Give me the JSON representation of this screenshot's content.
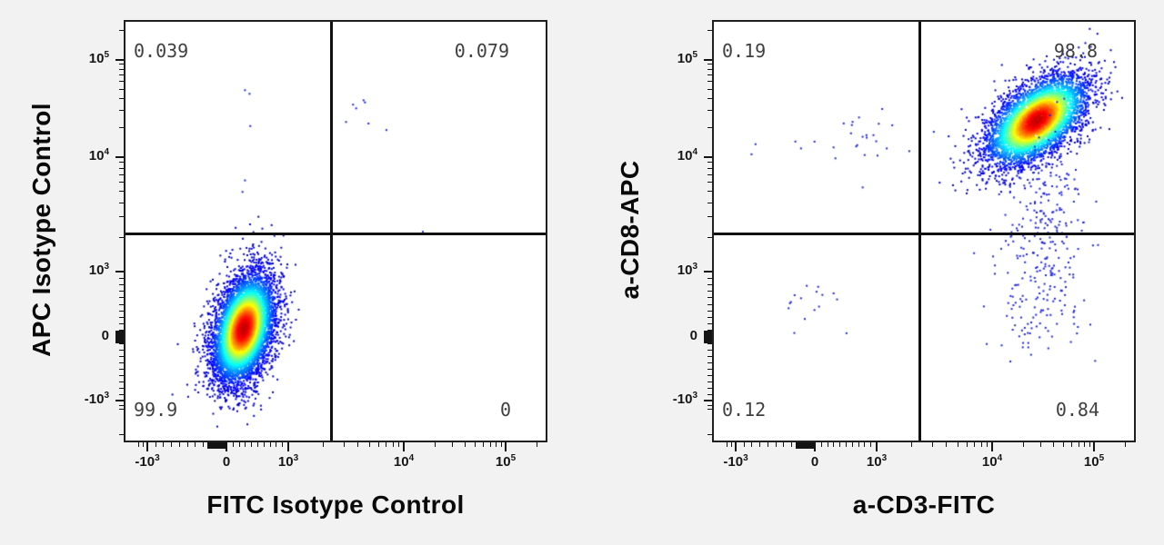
{
  "figure": {
    "background": "#f2f2f2",
    "plot_background": "#ffffff",
    "border_color": "#1f1f1f",
    "quadrant_line_color": "#101010",
    "dot_blue": "#2026dd",
    "quadrant_label_color": "#3f3f3f",
    "title_color": "#0a0a0a"
  },
  "chart_data": [
    {
      "type": "scatter",
      "subtype": "flow-cytometry-pseudocolor-dot-plot",
      "xlabel": "FITC Isotype Control",
      "ylabel": "APC Isotype Control",
      "x_scale": "biexponential",
      "y_scale": "biexponential",
      "x_range": [
        -2400,
        240000
      ],
      "y_range": [
        -2300,
        240000
      ],
      "axis_ticks": [
        {
          "v": -1000,
          "base": "-10",
          "sup": "3"
        },
        {
          "v": 0,
          "base": "0",
          "sup": ""
        },
        {
          "v": 1000,
          "base": "10",
          "sup": "3"
        },
        {
          "v": 10000,
          "base": "10",
          "sup": "4"
        },
        {
          "v": 100000,
          "base": "10",
          "sup": "5"
        }
      ],
      "quadrant_gate": {
        "x": 2300,
        "y": 2250
      },
      "quadrants": {
        "upper_left": "0.039",
        "upper_right": "0.079",
        "lower_left": "99.9",
        "lower_right": "0"
      },
      "seed": 7,
      "populations": [
        {
          "name": "unstained-main",
          "pct": 99.9,
          "x": 265,
          "y": 155,
          "sx": 17,
          "sy": 30,
          "rho": 0.35,
          "n": 7000,
          "render": "density"
        },
        {
          "name": "upper-left-strays",
          "pct": 0.039,
          "x": 300,
          "y": 36000,
          "sx": 5,
          "sy": 58,
          "rho": 0,
          "n": 5,
          "render": "sparse"
        },
        {
          "name": "upper-right-strays",
          "pct": 0.079,
          "x": 4400,
          "y": 30000,
          "sx": 17,
          "sy": 12,
          "rho": 0,
          "n": 7,
          "render": "sparse"
        },
        {
          "name": "gate-edge-stray",
          "x": 15000,
          "y": 2300,
          "sx": 0.5,
          "sy": 0.5,
          "rho": 0,
          "n": 1,
          "render": "sparse"
        }
      ]
    },
    {
      "type": "scatter",
      "subtype": "flow-cytometry-pseudocolor-dot-plot",
      "xlabel": "a-CD3-FITC",
      "ylabel": "a-CD8-APC",
      "x_scale": "biexponential",
      "y_scale": "biexponential",
      "x_range": [
        -2400,
        240000
      ],
      "y_range": [
        -2300,
        240000
      ],
      "axis_ticks": [
        {
          "v": -1000,
          "base": "-10",
          "sup": "3"
        },
        {
          "v": 0,
          "base": "0",
          "sup": ""
        },
        {
          "v": 1000,
          "base": "10",
          "sup": "3"
        },
        {
          "v": 10000,
          "base": "10",
          "sup": "4"
        },
        {
          "v": 100000,
          "base": "10",
          "sup": "5"
        }
      ],
      "quadrant_gate": {
        "x": 2300,
        "y": 2250
      },
      "quadrants": {
        "upper_left": "0.19",
        "upper_right": "98.8",
        "lower_left": "0.12",
        "lower_right": "0.84"
      },
      "seed": 11,
      "populations": [
        {
          "name": "cd3pos-cd8pos",
          "pct": 98.8,
          "x": 27000,
          "y": 25000,
          "sx": 28,
          "sy": 25,
          "rho": 0.55,
          "n": 5200,
          "render": "density"
        },
        {
          "name": "cd8-dim-trail",
          "x": 33000,
          "y": 2500,
          "sx": 20,
          "sy": 50,
          "rho": 0.1,
          "n": 230,
          "render": "sparse"
        },
        {
          "name": "cd3pos-cd8neg",
          "pct": 0.84,
          "x": 24000,
          "y": 600,
          "sx": 26,
          "sy": 38,
          "rho": 0,
          "n": 85,
          "render": "sparse"
        },
        {
          "name": "cd3neg-cd8pos",
          "pct": 0.19,
          "x": 500,
          "y": 17000,
          "sx": 45,
          "sy": 17,
          "rho": 0,
          "n": 28,
          "render": "sparse"
        },
        {
          "name": "double-negative",
          "pct": 0.12,
          "x": -80,
          "y": 600,
          "sx": 22,
          "sy": 16,
          "rho": 0,
          "n": 16,
          "render": "sparse"
        }
      ]
    }
  ]
}
